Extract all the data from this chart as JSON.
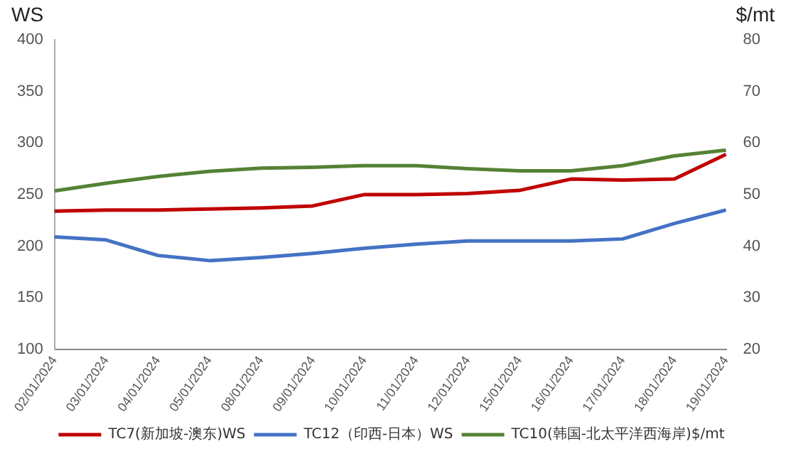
{
  "chart_data": {
    "type": "line",
    "ylabel": "WS",
    "y2label": "$/mt",
    "categories": [
      "02/01/2024",
      "03/01/2024",
      "04/01/2024",
      "05/01/2024",
      "08/01/2024",
      "09/01/2024",
      "10/01/2024",
      "11/01/2024",
      "12/01/2024",
      "15/01/2024",
      "16/01/2024",
      "17/01/2024",
      "18/01/2024",
      "19/01/2024"
    ],
    "series": [
      {
        "name": "TC7(新加坡-澳东)WS",
        "color": "#c00000",
        "values": [
          234,
          235,
          235,
          236,
          237,
          239,
          250,
          250,
          251,
          254,
          265,
          264,
          265,
          289
        ]
      },
      {
        "name": "TC12（印西-日本）WS",
        "color": "#4472c4",
        "values": [
          209,
          206,
          191,
          186,
          189,
          193,
          198,
          202,
          205,
          205,
          205,
          207,
          222,
          235
        ]
      },
      {
        "name": "TC10(韩国-北太平洋西海岸)$/mt",
        "color": "#548235",
        "axis": "y2",
        "values": [
          50.7,
          52.2,
          53.5,
          54.5,
          55.1,
          55.3,
          55.6,
          55.6,
          55.0,
          54.6,
          54.6,
          55.6,
          57.5,
          58.6
        ]
      }
    ],
    "ylim": [
      100,
      400
    ],
    "yticks": [
      100,
      150,
      200,
      250,
      300,
      350,
      400
    ],
    "y2lim": [
      20,
      80
    ],
    "y2ticks": [
      20,
      30,
      40,
      50,
      60,
      70,
      80
    ],
    "grid": false,
    "legend": "bottom",
    "marker": "none",
    "line_style": "solid"
  }
}
